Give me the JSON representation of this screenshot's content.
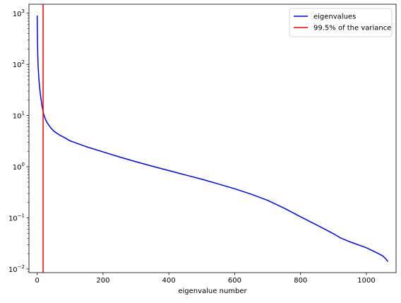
{
  "chart_data": {
    "type": "line",
    "xlabel": "eigenvalue number",
    "ylabel": "",
    "xlim": [
      -25,
      1090
    ],
    "ylim": [
      0.0085,
      1500
    ],
    "yscale": "log",
    "grid": false,
    "legend_position": "top-right",
    "x_ticks": [
      {
        "value": 0,
        "label": "0"
      },
      {
        "value": 200,
        "label": "200"
      },
      {
        "value": 400,
        "label": "400"
      },
      {
        "value": 600,
        "label": "600"
      },
      {
        "value": 800,
        "label": "800"
      },
      {
        "value": 1000,
        "label": "1000"
      }
    ],
    "y_ticks": [
      {
        "value": 0.01,
        "base": "10",
        "exp": "−2"
      },
      {
        "value": 0.1,
        "base": "10",
        "exp": "−1"
      },
      {
        "value": 1,
        "base": "10",
        "exp": "0"
      },
      {
        "value": 10,
        "base": "10",
        "exp": "1"
      },
      {
        "value": 100,
        "base": "10",
        "exp": "2"
      },
      {
        "value": 1000,
        "base": "10",
        "exp": "3"
      }
    ],
    "series": [
      {
        "name": "eigenvalues",
        "color": "#0000ff",
        "x": [
          0,
          1,
          2,
          3,
          5,
          7,
          10,
          15,
          20,
          25,
          30,
          40,
          50,
          60,
          70,
          80,
          100,
          150,
          200,
          250,
          300,
          350,
          400,
          450,
          500,
          550,
          600,
          650,
          700,
          750,
          800,
          850,
          900,
          920,
          950,
          1000,
          1030,
          1050,
          1060,
          1065
        ],
        "y": [
          900,
          260,
          140,
          90,
          55,
          38,
          25,
          15,
          10.5,
          8.5,
          7.3,
          5.9,
          5.0,
          4.5,
          4.1,
          3.8,
          3.2,
          2.45,
          1.95,
          1.55,
          1.25,
          1.02,
          0.84,
          0.69,
          0.57,
          0.46,
          0.37,
          0.29,
          0.22,
          0.155,
          0.105,
          0.072,
          0.049,
          0.041,
          0.034,
          0.026,
          0.021,
          0.018,
          0.0155,
          0.014
        ]
      }
    ],
    "vlines": [
      {
        "name": "99.5% of the variance",
        "color": "#ff0000",
        "x": 18
      }
    ]
  }
}
